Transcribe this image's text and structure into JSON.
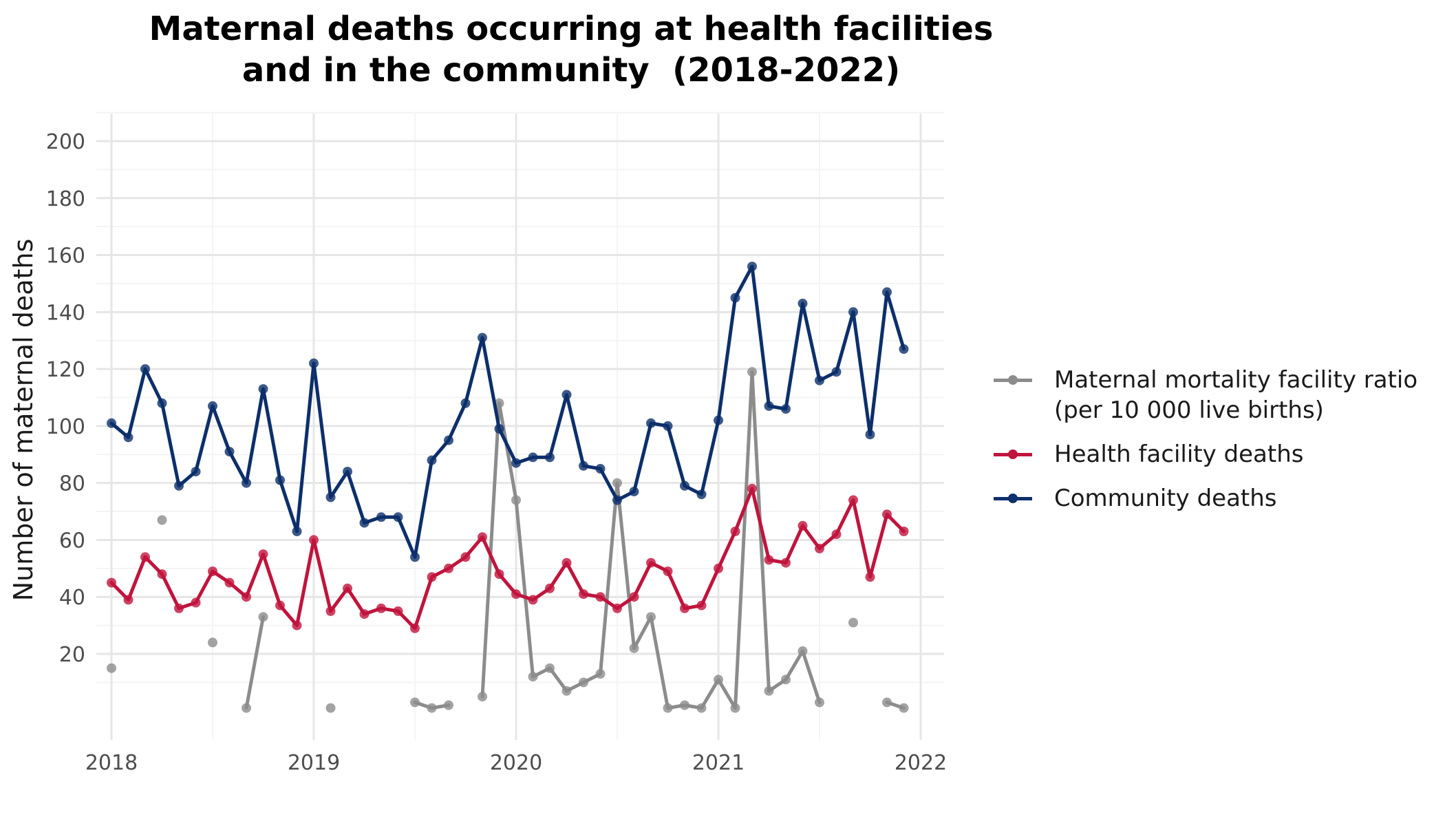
{
  "chart_data": {
    "type": "line",
    "title_lines": [
      "Maternal deaths occurring at health facilities",
      "and in the community  (2018-2022)"
    ],
    "xlabel": "",
    "ylabel": "Number of maternal deaths",
    "xlim": [
      2018,
      2022
    ],
    "ylim": [
      -9,
      211
    ],
    "x_ticks": [
      "2018",
      "2019",
      "2020",
      "2021",
      "2022"
    ],
    "y_ticks": [
      "20",
      "40",
      "60",
      "80",
      "100",
      "120",
      "140",
      "160",
      "180",
      "200"
    ],
    "grid": true,
    "legend_position": "right",
    "x_step": "monthly from 2018-01 to 2021-12 (value i at year 2018 + i/12)",
    "series": [
      {
        "name": "Maternal mortality facility ratio (per 10 000 live births)",
        "legend_lines": [
          "Maternal mortality facility ratio",
          "(per 10 000 live births)"
        ],
        "color": "#8c8c8c",
        "values": [
          15,
          null,
          null,
          67,
          null,
          null,
          24,
          null,
          1,
          33,
          null,
          null,
          null,
          1,
          null,
          null,
          null,
          null,
          3,
          1,
          2,
          null,
          5,
          108,
          74,
          12,
          15,
          7,
          10,
          13,
          80,
          22,
          33,
          1,
          2,
          1,
          11,
          1,
          119,
          7,
          11,
          21,
          3,
          null,
          31,
          null,
          3,
          1
        ]
      },
      {
        "name": "Health facility deaths",
        "legend_lines": [
          "Health facility deaths"
        ],
        "color": "#c0143c",
        "values": [
          45,
          39,
          54,
          48,
          36,
          38,
          49,
          45,
          40,
          55,
          37,
          30,
          60,
          35,
          43,
          34,
          36,
          35,
          29,
          47,
          50,
          54,
          61,
          48,
          41,
          39,
          43,
          52,
          41,
          40,
          36,
          40,
          52,
          49,
          36,
          37,
          50,
          63,
          78,
          53,
          52,
          65,
          57,
          62,
          74,
          47,
          69,
          63
        ]
      },
      {
        "name": "Community deaths",
        "legend_lines": [
          "Community deaths"
        ],
        "color": "#0d2f6b",
        "values": [
          101,
          96,
          120,
          108,
          79,
          84,
          107,
          91,
          80,
          113,
          81,
          63,
          122,
          75,
          84,
          66,
          68,
          68,
          54,
          88,
          95,
          108,
          131,
          99,
          87,
          89,
          89,
          111,
          86,
          85,
          74,
          77,
          101,
          100,
          79,
          76,
          102,
          145,
          156,
          107,
          106,
          143,
          116,
          119,
          140,
          97,
          147,
          127
        ]
      }
    ]
  }
}
